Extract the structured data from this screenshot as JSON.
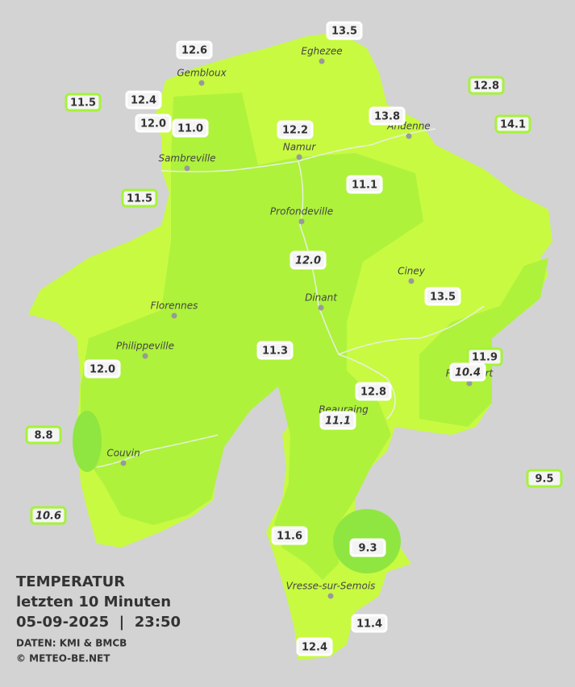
{
  "title": {
    "line1": "TEMPERATUR",
    "line2": "letzten 10 Minuten",
    "line3": "05-09-2025  |  23:50",
    "source": "DATEN: KMI & BMCB",
    "copyright": "© METEO-BE.NET"
  },
  "cities": [
    "Eghezee",
    "Gembloux",
    "Andenne",
    "Namur",
    "Sambreville",
    "Profondeville",
    "Ciney",
    "Dinant",
    "Florennes",
    "Philippeville",
    "Rochefort",
    "Beauraing",
    "Couvin",
    "Vresse-sur-Semois"
  ],
  "stations": [
    {
      "value": "13.5",
      "italic": false,
      "outside": false
    },
    {
      "value": "12.6",
      "italic": false,
      "outside": false
    },
    {
      "value": "12.8",
      "italic": false,
      "outside": true
    },
    {
      "value": "11.5",
      "italic": false,
      "outside": true
    },
    {
      "value": "12.4",
      "italic": false,
      "outside": false
    },
    {
      "value": "12.0",
      "italic": false,
      "outside": false
    },
    {
      "value": "11.0",
      "italic": false,
      "outside": false
    },
    {
      "value": "12.2",
      "italic": false,
      "outside": false
    },
    {
      "value": "13.8",
      "italic": false,
      "outside": false
    },
    {
      "value": "14.1",
      "italic": false,
      "outside": true
    },
    {
      "value": "11.5",
      "italic": false,
      "outside": true
    },
    {
      "value": "11.1",
      "italic": false,
      "outside": false
    },
    {
      "value": "12.0",
      "italic": true,
      "outside": false
    },
    {
      "value": "13.5",
      "italic": false,
      "outside": false
    },
    {
      "value": "11.3",
      "italic": false,
      "outside": false
    },
    {
      "value": "12.0",
      "italic": false,
      "outside": false
    },
    {
      "value": "11.9",
      "italic": false,
      "outside": true
    },
    {
      "value": "10.4",
      "italic": true,
      "outside": false
    },
    {
      "value": "12.8",
      "italic": false,
      "outside": false
    },
    {
      "value": "11.1",
      "italic": true,
      "outside": false
    },
    {
      "value": "8.8",
      "italic": false,
      "outside": true
    },
    {
      "value": "9.5",
      "italic": false,
      "outside": true
    },
    {
      "value": "10.6",
      "italic": true,
      "outside": true
    },
    {
      "value": "11.6",
      "italic": false,
      "outside": false
    },
    {
      "value": "9.3",
      "italic": false,
      "outside": false
    },
    {
      "value": "11.4",
      "italic": false,
      "outside": false
    },
    {
      "value": "12.4",
      "italic": false,
      "outside": false
    }
  ]
}
